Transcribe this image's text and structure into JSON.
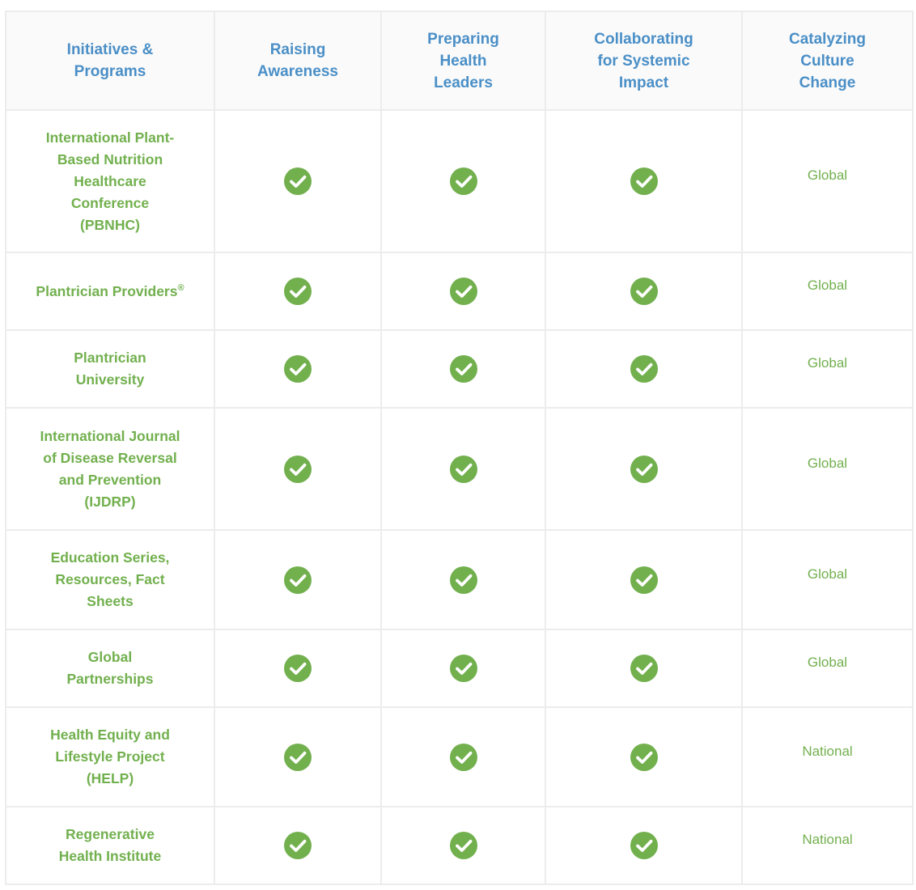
{
  "table": {
    "headers": [
      "Initiatives & Programs",
      "Raising Awareness",
      "Preparing Health Leaders",
      "Collaborating for Systemic Impact",
      "Catalyzing Culture Change"
    ],
    "rows": [
      {
        "name": "International Plant-Based Nutrition Healthcare Conference (PBNHC)",
        "raising": true,
        "preparing": true,
        "collaborating": true,
        "catalyzing": "Global"
      },
      {
        "name": "Plantrician Providers",
        "name_mark": "®",
        "raising": true,
        "preparing": true,
        "collaborating": true,
        "catalyzing": "Global"
      },
      {
        "name": "Plantrician University",
        "raising": true,
        "preparing": true,
        "collaborating": true,
        "catalyzing": "Global"
      },
      {
        "name": "International Journal of Disease Reversal and Prevention (IJDRP)",
        "raising": true,
        "preparing": true,
        "collaborating": true,
        "catalyzing": "Global"
      },
      {
        "name": "Education Series, Resources, Fact Sheets",
        "raising": true,
        "preparing": true,
        "collaborating": true,
        "catalyzing": "Global"
      },
      {
        "name": "Global Partnerships",
        "raising": true,
        "preparing": true,
        "collaborating": true,
        "catalyzing": "Global"
      },
      {
        "name": "Health Equity and Lifestyle Project (HELP)",
        "raising": true,
        "preparing": true,
        "collaborating": true,
        "catalyzing": "National"
      },
      {
        "name": "Regenerative Health Institute",
        "raising": true,
        "preparing": true,
        "collaborating": true,
        "catalyzing": "National"
      }
    ]
  },
  "icons": {
    "check": "check-circle-icon"
  },
  "colors": {
    "header_text": "#4a8fc7",
    "program_text": "#72b04e",
    "check": "#72b04e",
    "border": "#ececec"
  }
}
